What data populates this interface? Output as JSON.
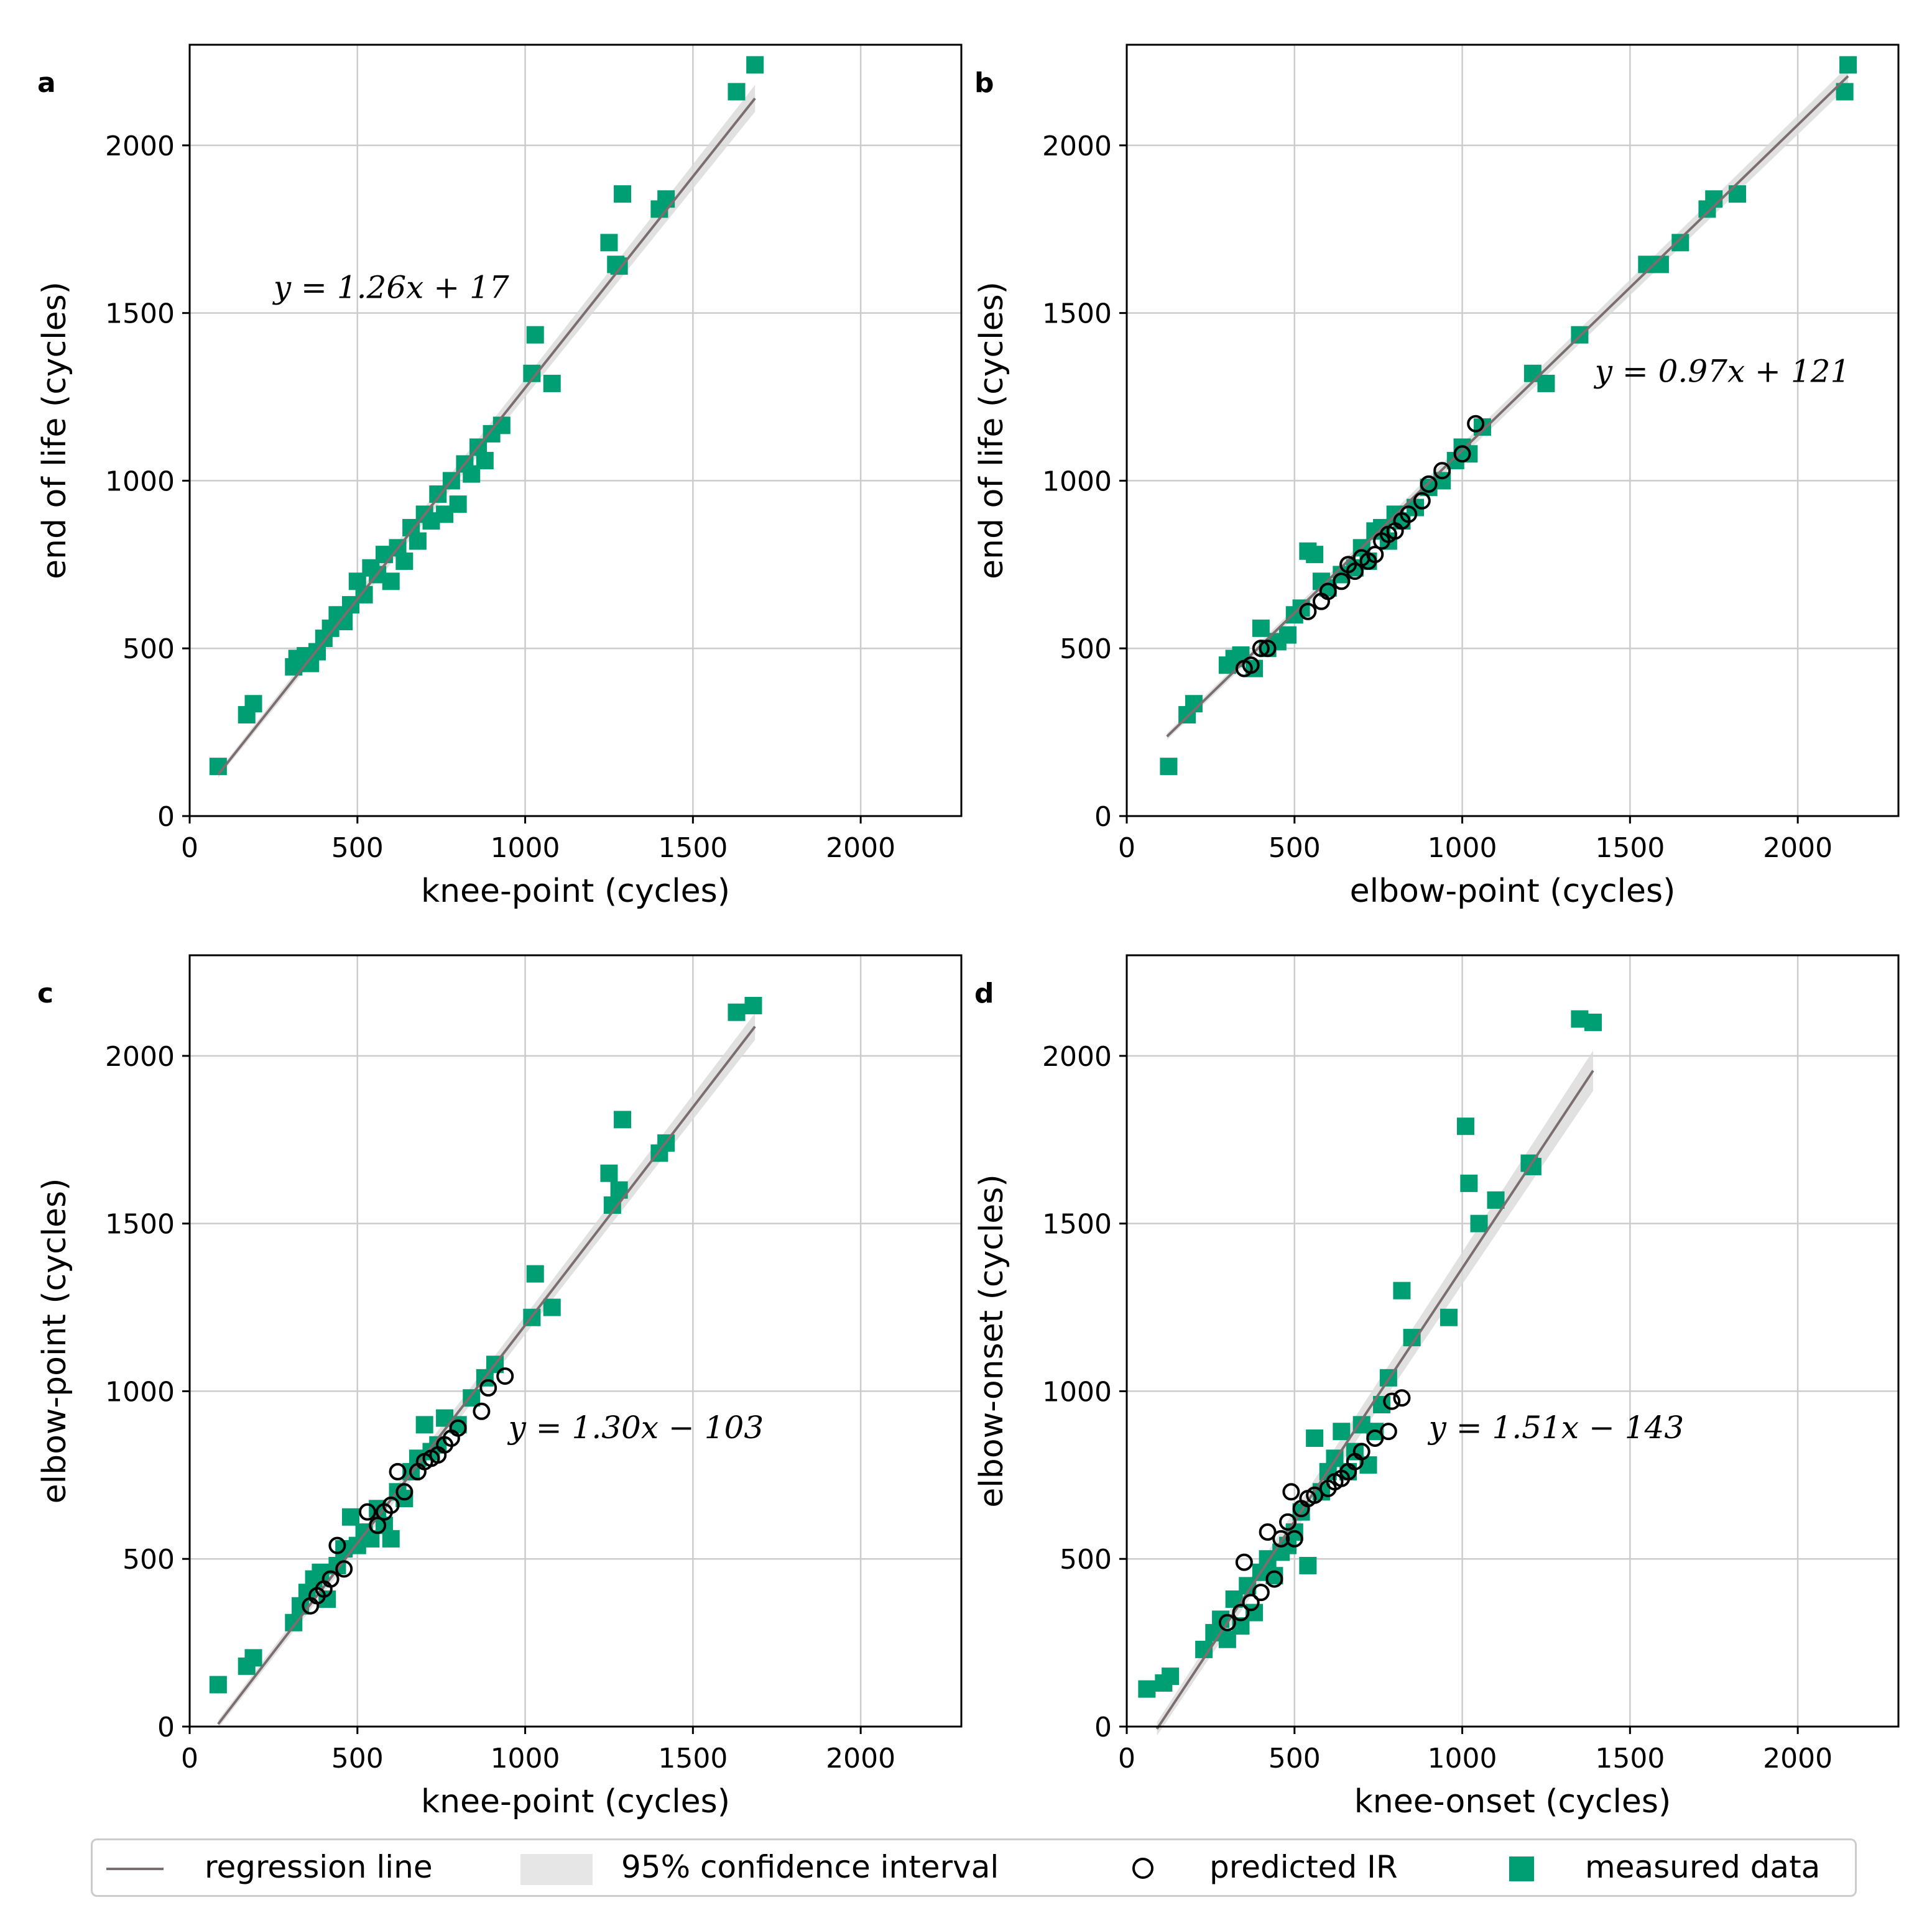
{
  "colors": {
    "measured": "#009E73",
    "regression": "#7a6e6e",
    "ci": "#d9d9d9",
    "grid": "#cccccc",
    "predicted": "#000000"
  },
  "legend": {
    "regression_line": "regression line",
    "confidence_interval": "95% confidence interval",
    "predicted": "predicted IR",
    "measured": "measured data"
  },
  "chart_data": [
    {
      "panel": "a",
      "type": "scatter",
      "xlabel": "knee-point (cycles)",
      "ylabel": "end of life (cycles)",
      "xlim": [
        0,
        2300
      ],
      "ylim": [
        0,
        2300
      ],
      "xticks": [
        0,
        500,
        1000,
        1500,
        2000
      ],
      "yticks": [
        0,
        500,
        1000,
        1500,
        2000
      ],
      "equation": "y = 1.26x + 17",
      "equation_pos": [
        250,
        1545
      ],
      "regression": {
        "slope": 1.26,
        "intercept": 17,
        "x_range": [
          85,
          1685
        ],
        "ci_half": [
          10,
          40
        ]
      },
      "measured": [
        [
          85,
          148
        ],
        [
          170,
          302
        ],
        [
          190,
          335
        ],
        [
          310,
          445
        ],
        [
          320,
          470
        ],
        [
          345,
          478
        ],
        [
          360,
          455
        ],
        [
          380,
          490
        ],
        [
          400,
          530
        ],
        [
          420,
          560
        ],
        [
          440,
          600
        ],
        [
          460,
          580
        ],
        [
          480,
          630
        ],
        [
          500,
          700
        ],
        [
          520,
          660
        ],
        [
          540,
          740
        ],
        [
          560,
          720
        ],
        [
          580,
          780
        ],
        [
          600,
          700
        ],
        [
          620,
          800
        ],
        [
          640,
          760
        ],
        [
          660,
          860
        ],
        [
          680,
          820
        ],
        [
          700,
          900
        ],
        [
          720,
          880
        ],
        [
          740,
          960
        ],
        [
          760,
          900
        ],
        [
          780,
          1000
        ],
        [
          800,
          930
        ],
        [
          820,
          1050
        ],
        [
          840,
          1020
        ],
        [
          860,
          1100
        ],
        [
          880,
          1060
        ],
        [
          900,
          1140
        ],
        [
          930,
          1165
        ],
        [
          1020,
          1320
        ],
        [
          1030,
          1435
        ],
        [
          1080,
          1290
        ],
        [
          1250,
          1710
        ],
        [
          1270,
          1645
        ],
        [
          1280,
          1640
        ],
        [
          1290,
          1855
        ],
        [
          1400,
          1810
        ],
        [
          1420,
          1840
        ],
        [
          1630,
          2160
        ],
        [
          1685,
          2240
        ]
      ],
      "predicted": []
    },
    {
      "panel": "b",
      "type": "scatter",
      "xlabel": "elbow-point (cycles)",
      "ylabel": "end of life (cycles)",
      "xlim": [
        0,
        2300
      ],
      "ylim": [
        0,
        2300
      ],
      "xticks": [
        0,
        500,
        1000,
        1500,
        2000
      ],
      "yticks": [
        0,
        500,
        1000,
        1500,
        2000
      ],
      "equation": "y = 0.97x + 121",
      "equation_pos": [
        1395,
        1295
      ],
      "regression": {
        "slope": 0.97,
        "intercept": 121,
        "x_range": [
          120,
          2150
        ],
        "ci_half": [
          10,
          30
        ]
      },
      "measured": [
        [
          125,
          148
        ],
        [
          180,
          302
        ],
        [
          200,
          335
        ],
        [
          300,
          450
        ],
        [
          320,
          470
        ],
        [
          340,
          480
        ],
        [
          380,
          440
        ],
        [
          400,
          560
        ],
        [
          420,
          500
        ],
        [
          450,
          520
        ],
        [
          480,
          540
        ],
        [
          500,
          600
        ],
        [
          520,
          620
        ],
        [
          540,
          790
        ],
        [
          560,
          780
        ],
        [
          580,
          700
        ],
        [
          600,
          680
        ],
        [
          640,
          720
        ],
        [
          680,
          740
        ],
        [
          700,
          800
        ],
        [
          720,
          760
        ],
        [
          740,
          850
        ],
        [
          760,
          860
        ],
        [
          780,
          820
        ],
        [
          800,
          900
        ],
        [
          820,
          880
        ],
        [
          860,
          920
        ],
        [
          900,
          980
        ],
        [
          940,
          1000
        ],
        [
          980,
          1060
        ],
        [
          1000,
          1100
        ],
        [
          1020,
          1080
        ],
        [
          1060,
          1160
        ],
        [
          1210,
          1320
        ],
        [
          1250,
          1290
        ],
        [
          1350,
          1435
        ],
        [
          1550,
          1645
        ],
        [
          1590,
          1645
        ],
        [
          1650,
          1710
        ],
        [
          1730,
          1810
        ],
        [
          1750,
          1840
        ],
        [
          1820,
          1855
        ],
        [
          2140,
          2160
        ],
        [
          2150,
          2240
        ]
      ],
      "predicted": [
        [
          350,
          440
        ],
        [
          370,
          450
        ],
        [
          400,
          500
        ],
        [
          420,
          500
        ],
        [
          540,
          610
        ],
        [
          580,
          640
        ],
        [
          600,
          670
        ],
        [
          640,
          700
        ],
        [
          660,
          750
        ],
        [
          680,
          730
        ],
        [
          700,
          770
        ],
        [
          720,
          760
        ],
        [
          740,
          780
        ],
        [
          760,
          820
        ],
        [
          780,
          840
        ],
        [
          800,
          850
        ],
        [
          820,
          880
        ],
        [
          840,
          900
        ],
        [
          880,
          940
        ],
        [
          900,
          990
        ],
        [
          940,
          1030
        ],
        [
          1000,
          1080
        ],
        [
          1040,
          1170
        ]
      ]
    },
    {
      "panel": "c",
      "type": "scatter",
      "xlabel": "knee-point (cycles)",
      "ylabel": "elbow-point (cycles)",
      "xlim": [
        0,
        2300
      ],
      "ylim": [
        0,
        2300
      ],
      "xticks": [
        0,
        500,
        1000,
        1500,
        2000
      ],
      "yticks": [
        0,
        500,
        1000,
        1500,
        2000
      ],
      "equation": "y = 1.30x − 103",
      "equation_pos": [
        950,
        860
      ],
      "regression": {
        "slope": 1.3,
        "intercept": -103,
        "x_range": [
          85,
          1685
        ],
        "ci_half": [
          12,
          40
        ]
      },
      "measured": [
        [
          85,
          125
        ],
        [
          170,
          180
        ],
        [
          190,
          205
        ],
        [
          310,
          310
        ],
        [
          330,
          360
        ],
        [
          350,
          400
        ],
        [
          370,
          440
        ],
        [
          390,
          460
        ],
        [
          410,
          380
        ],
        [
          440,
          480
        ],
        [
          460,
          530
        ],
        [
          480,
          625
        ],
        [
          500,
          540
        ],
        [
          520,
          580
        ],
        [
          540,
          560
        ],
        [
          560,
          650
        ],
        [
          580,
          600
        ],
        [
          600,
          560
        ],
        [
          620,
          700
        ],
        [
          640,
          680
        ],
        [
          660,
          760
        ],
        [
          680,
          800
        ],
        [
          700,
          900
        ],
        [
          720,
          820
        ],
        [
          740,
          840
        ],
        [
          760,
          920
        ],
        [
          800,
          900
        ],
        [
          840,
          980
        ],
        [
          880,
          1040
        ],
        [
          910,
          1080
        ],
        [
          1020,
          1220
        ],
        [
          1030,
          1350
        ],
        [
          1080,
          1250
        ],
        [
          1250,
          1650
        ],
        [
          1260,
          1555
        ],
        [
          1280,
          1600
        ],
        [
          1290,
          1810
        ],
        [
          1400,
          1710
        ],
        [
          1420,
          1740
        ],
        [
          1630,
          2130
        ],
        [
          1680,
          2150
        ]
      ],
      "predicted": [
        [
          360,
          360
        ],
        [
          380,
          390
        ],
        [
          400,
          410
        ],
        [
          420,
          440
        ],
        [
          440,
          540
        ],
        [
          460,
          470
        ],
        [
          530,
          640
        ],
        [
          560,
          600
        ],
        [
          580,
          640
        ],
        [
          600,
          660
        ],
        [
          620,
          760
        ],
        [
          640,
          700
        ],
        [
          680,
          760
        ],
        [
          700,
          790
        ],
        [
          720,
          800
        ],
        [
          740,
          810
        ],
        [
          760,
          840
        ],
        [
          780,
          860
        ],
        [
          800,
          890
        ],
        [
          870,
          940
        ],
        [
          890,
          1010
        ],
        [
          940,
          1045
        ]
      ]
    },
    {
      "panel": "d",
      "type": "scatter",
      "xlabel": "knee-onset (cycles)",
      "ylabel": "elbow-onset (cycles)",
      "xlim": [
        0,
        2300
      ],
      "ylim": [
        0,
        2300
      ],
      "xticks": [
        0,
        500,
        1000,
        1500,
        2000
      ],
      "yticks": [
        0,
        500,
        1000,
        1500,
        2000
      ],
      "equation": "y = 1.51x − 143",
      "equation_pos": [
        900,
        860
      ],
      "regression": {
        "slope": 1.51,
        "intercept": -143,
        "x_range": [
          90,
          1390
        ],
        "ci_half": [
          20,
          60
        ]
      },
      "measured": [
        [
          60,
          112
        ],
        [
          110,
          130
        ],
        [
          130,
          150
        ],
        [
          230,
          230
        ],
        [
          260,
          280
        ],
        [
          280,
          320
        ],
        [
          300,
          260
        ],
        [
          320,
          380
        ],
        [
          340,
          300
        ],
        [
          360,
          420
        ],
        [
          380,
          340
        ],
        [
          400,
          460
        ],
        [
          420,
          500
        ],
        [
          440,
          450
        ],
        [
          460,
          520
        ],
        [
          480,
          540
        ],
        [
          500,
          580
        ],
        [
          520,
          640
        ],
        [
          540,
          480
        ],
        [
          560,
          860
        ],
        [
          580,
          700
        ],
        [
          600,
          760
        ],
        [
          620,
          800
        ],
        [
          640,
          880
        ],
        [
          660,
          760
        ],
        [
          680,
          820
        ],
        [
          700,
          900
        ],
        [
          720,
          780
        ],
        [
          740,
          880
        ],
        [
          760,
          960
        ],
        [
          780,
          1040
        ],
        [
          820,
          1300
        ],
        [
          850,
          1160
        ],
        [
          960,
          1220
        ],
        [
          1010,
          1790
        ],
        [
          1020,
          1620
        ],
        [
          1050,
          1500
        ],
        [
          1100,
          1570
        ],
        [
          1200,
          1680
        ],
        [
          1210,
          1670
        ],
        [
          1350,
          2110
        ],
        [
          1390,
          2100
        ]
      ],
      "predicted": [
        [
          300,
          310
        ],
        [
          340,
          340
        ],
        [
          350,
          490
        ],
        [
          370,
          370
        ],
        [
          400,
          400
        ],
        [
          420,
          580
        ],
        [
          440,
          440
        ],
        [
          460,
          560
        ],
        [
          480,
          610
        ],
        [
          490,
          700
        ],
        [
          500,
          560
        ],
        [
          520,
          650
        ],
        [
          540,
          680
        ],
        [
          560,
          690
        ],
        [
          600,
          710
        ],
        [
          620,
          730
        ],
        [
          640,
          740
        ],
        [
          660,
          760
        ],
        [
          680,
          790
        ],
        [
          700,
          820
        ],
        [
          740,
          860
        ],
        [
          780,
          880
        ],
        [
          790,
          970
        ],
        [
          820,
          980
        ]
      ]
    }
  ]
}
